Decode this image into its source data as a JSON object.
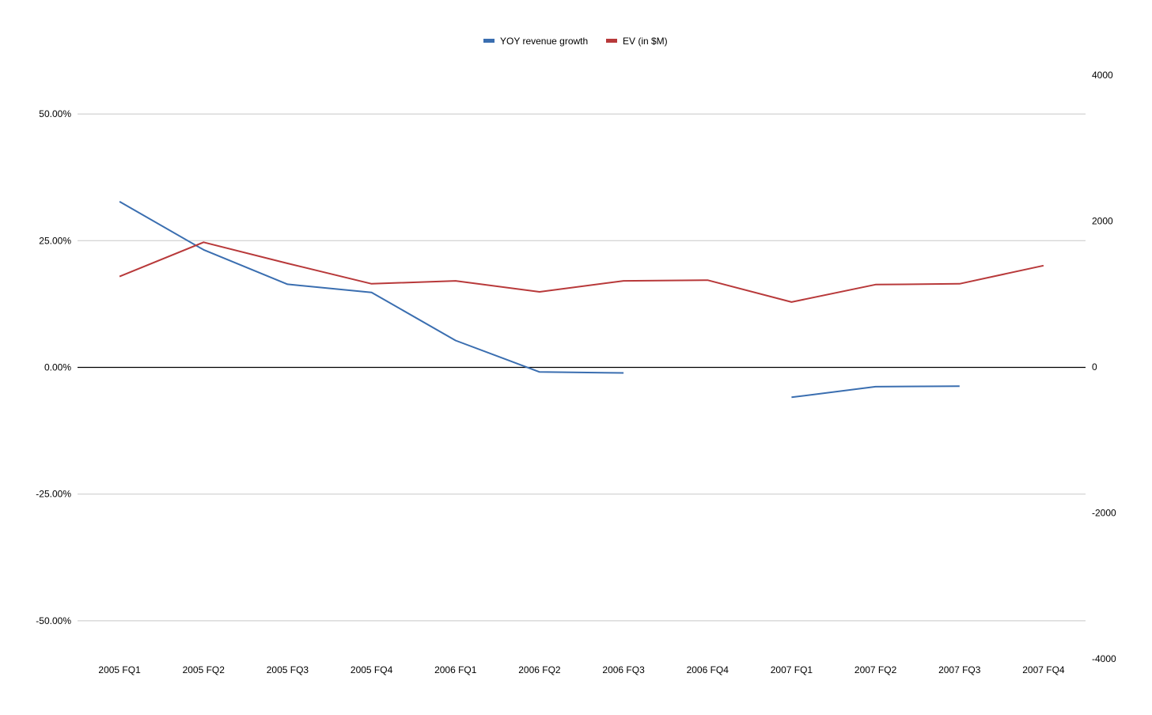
{
  "chart_data": {
    "type": "line",
    "categories": [
      "2005 FQ1",
      "2005 FQ2",
      "2005 FQ3",
      "2005 FQ4",
      "2006 FQ1",
      "2006 FQ2",
      "2006 FQ3",
      "2006 FQ4",
      "2007 FQ1",
      "2007 FQ2",
      "2007 FQ3",
      "2007 FQ4"
    ],
    "left_axis": {
      "ylim": [
        -0.6,
        0.6
      ],
      "ticks": [
        0.5,
        0.25,
        0,
        -0.25,
        -0.5
      ],
      "tick_labels": [
        "50.00%",
        "25.00%",
        "0.00%",
        "-25.00%",
        "-50.00%"
      ]
    },
    "right_axis": {
      "ylim": [
        -4000,
        4000
      ],
      "ticks": [
        4000,
        2000,
        0,
        -2000,
        -4000
      ],
      "tick_labels": [
        "4000",
        "2000",
        "0",
        "-2000",
        "-4000"
      ]
    },
    "series": [
      {
        "name": "YOY revenue growth",
        "axis": "left",
        "color": "#3a6eb0",
        "values": [
          0.327,
          0.232,
          0.164,
          0.148,
          0.053,
          -0.009,
          -0.011,
          null,
          -0.059,
          -0.038,
          -0.037,
          null
        ]
      },
      {
        "name": "EV (in $M)",
        "axis": "right",
        "color": "#b8393a",
        "values": [
          1240,
          1710,
          1420,
          1140,
          1180,
          1030,
          1180,
          1190,
          890,
          1130,
          1140,
          1390
        ]
      }
    ],
    "legend_position": "top-center",
    "grid": true,
    "zero_line": true
  }
}
